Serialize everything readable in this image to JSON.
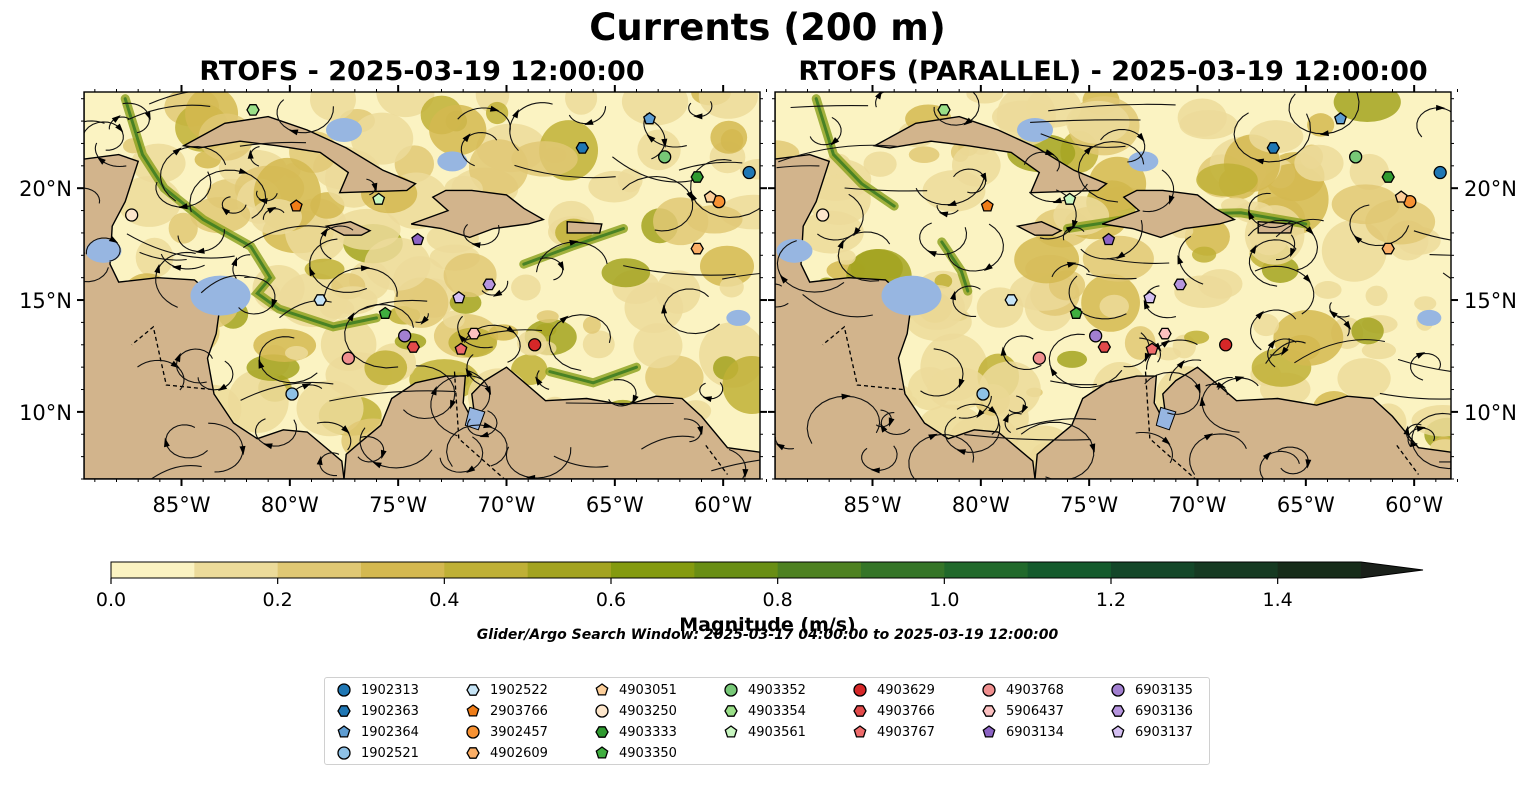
{
  "title": "Currents (200 m)",
  "panels": [
    {
      "title": "RTOFS - 2025-03-19 12:00:00"
    },
    {
      "title": "RTOFS (PARALLEL) - 2025-03-19 12:00:00"
    }
  ],
  "colorbar": {
    "label": "Magnitude (m/s)",
    "ticks": [
      "0.0",
      "0.2",
      "0.4",
      "0.6",
      "0.8",
      "1.0",
      "1.2",
      "1.4"
    ],
    "colors": [
      "#fbf3c2",
      "#ecdb9a",
      "#e0c874",
      "#d4b850",
      "#bfb036",
      "#a3a320",
      "#849a0f",
      "#698e14",
      "#4e8121",
      "#357528",
      "#21692b",
      "#145a2c",
      "#144729",
      "#163a22",
      "#172c1a",
      "#1a201a"
    ]
  },
  "search_window": "Glider/Argo Search Window: 2025-03-17 04:00:00 to 2025-03-19 12:00:00",
  "chart_data": {
    "type": "map",
    "variable": "ocean current speed at 200 m",
    "lon_range": [
      -89.5,
      -58.3
    ],
    "lat_range": [
      7,
      24.3
    ],
    "x_ticks": [
      "85°W",
      "80°W",
      "75°W",
      "70°W",
      "65°W",
      "60°W"
    ],
    "y_ticks": [
      "20°N",
      "15°N",
      "10°N"
    ],
    "colorbar_range": [
      0,
      1.5
    ],
    "floats": [
      {
        "id": "1902313",
        "marker": "circle",
        "color": "#1f77b4",
        "lon": -58.8,
        "lat": 20.7
      },
      {
        "id": "1902363",
        "marker": "hexagon",
        "color": "#1f77b4",
        "lon": -66.5,
        "lat": 21.8
      },
      {
        "id": "1902364",
        "marker": "pentagon",
        "color": "#5e9dd2",
        "lon": -63.4,
        "lat": 23.1
      },
      {
        "id": "1902521",
        "marker": "circle",
        "color": "#8ec1e6",
        "lon": -79.9,
        "lat": 10.8
      },
      {
        "id": "1902522",
        "marker": "hexagon",
        "color": "#c6e4f6",
        "lon": -78.6,
        "lat": 15.0
      },
      {
        "id": "2903766",
        "marker": "pentagon",
        "color": "#f07d18",
        "lon": -79.7,
        "lat": 19.2
      },
      {
        "id": "3902457",
        "marker": "circle",
        "color": "#f79233",
        "lon": -60.2,
        "lat": 19.4
      },
      {
        "id": "4902609",
        "marker": "hexagon",
        "color": "#fbae66",
        "lon": -61.2,
        "lat": 17.3
      },
      {
        "id": "4903051",
        "marker": "pentagon",
        "color": "#fdcf9a",
        "lon": -60.6,
        "lat": 19.6
      },
      {
        "id": "4903250",
        "marker": "circle",
        "color": "#fde6cb",
        "lon": -87.3,
        "lat": 18.8
      },
      {
        "id": "4903333",
        "marker": "hexagon",
        "color": "#2f9a30",
        "lon": -61.2,
        "lat": 20.5
      },
      {
        "id": "4903350",
        "marker": "pentagon",
        "color": "#3fae3f",
        "lon": -75.6,
        "lat": 14.4
      },
      {
        "id": "4903352",
        "marker": "circle",
        "color": "#77c877",
        "lon": -62.7,
        "lat": 21.4
      },
      {
        "id": "4903354",
        "marker": "hexagon",
        "color": "#9adf88",
        "lon": -81.7,
        "lat": 23.5
      },
      {
        "id": "4903561",
        "marker": "pentagon",
        "color": "#c8f6c0",
        "lon": -75.9,
        "lat": 19.5
      },
      {
        "id": "4903629",
        "marker": "circle",
        "color": "#d62728",
        "lon": -68.7,
        "lat": 13.0
      },
      {
        "id": "4903766",
        "marker": "hexagon",
        "color": "#e24a4a",
        "lon": -74.3,
        "lat": 12.9
      },
      {
        "id": "4903767",
        "marker": "pentagon",
        "color": "#ee6b6b",
        "lon": -72.1,
        "lat": 12.8
      },
      {
        "id": "4903768",
        "marker": "circle",
        "color": "#f08f8f",
        "lon": -77.3,
        "lat": 12.4
      },
      {
        "id": "5906437",
        "marker": "hexagon",
        "color": "#fbc0c0",
        "lon": -71.5,
        "lat": 13.5
      },
      {
        "id": "6903134",
        "marker": "pentagon",
        "color": "#8c63c4",
        "lon": -74.1,
        "lat": 17.7
      },
      {
        "id": "6903135",
        "marker": "circle",
        "color": "#a27fd0",
        "lon": -74.7,
        "lat": 13.4
      },
      {
        "id": "6903136",
        "marker": "hexagon",
        "color": "#b695de",
        "lon": -70.8,
        "lat": 15.7
      },
      {
        "id": "6903137",
        "marker": "pentagon",
        "color": "#d4bff2",
        "lon": -72.2,
        "lat": 15.1
      }
    ]
  },
  "legend_items": [
    {
      "id": "1902313"
    },
    {
      "id": "1902363"
    },
    {
      "id": "1902364"
    },
    {
      "id": "1902521"
    },
    {
      "id": "1902522"
    },
    {
      "id": "2903766"
    },
    {
      "id": "3902457"
    },
    {
      "id": "4902609"
    },
    {
      "id": "4903051"
    },
    {
      "id": "4903250"
    },
    {
      "id": "4903333"
    },
    {
      "id": "4903350"
    },
    {
      "id": "4903352"
    },
    {
      "id": "4903354"
    },
    {
      "id": "4903561"
    },
    {
      "id": "4903629"
    },
    {
      "id": "4903766"
    },
    {
      "id": "4903767"
    },
    {
      "id": "4903768"
    },
    {
      "id": "5906437"
    },
    {
      "id": "6903134"
    },
    {
      "id": "6903135"
    },
    {
      "id": "6903136"
    },
    {
      "id": "6903137"
    }
  ]
}
